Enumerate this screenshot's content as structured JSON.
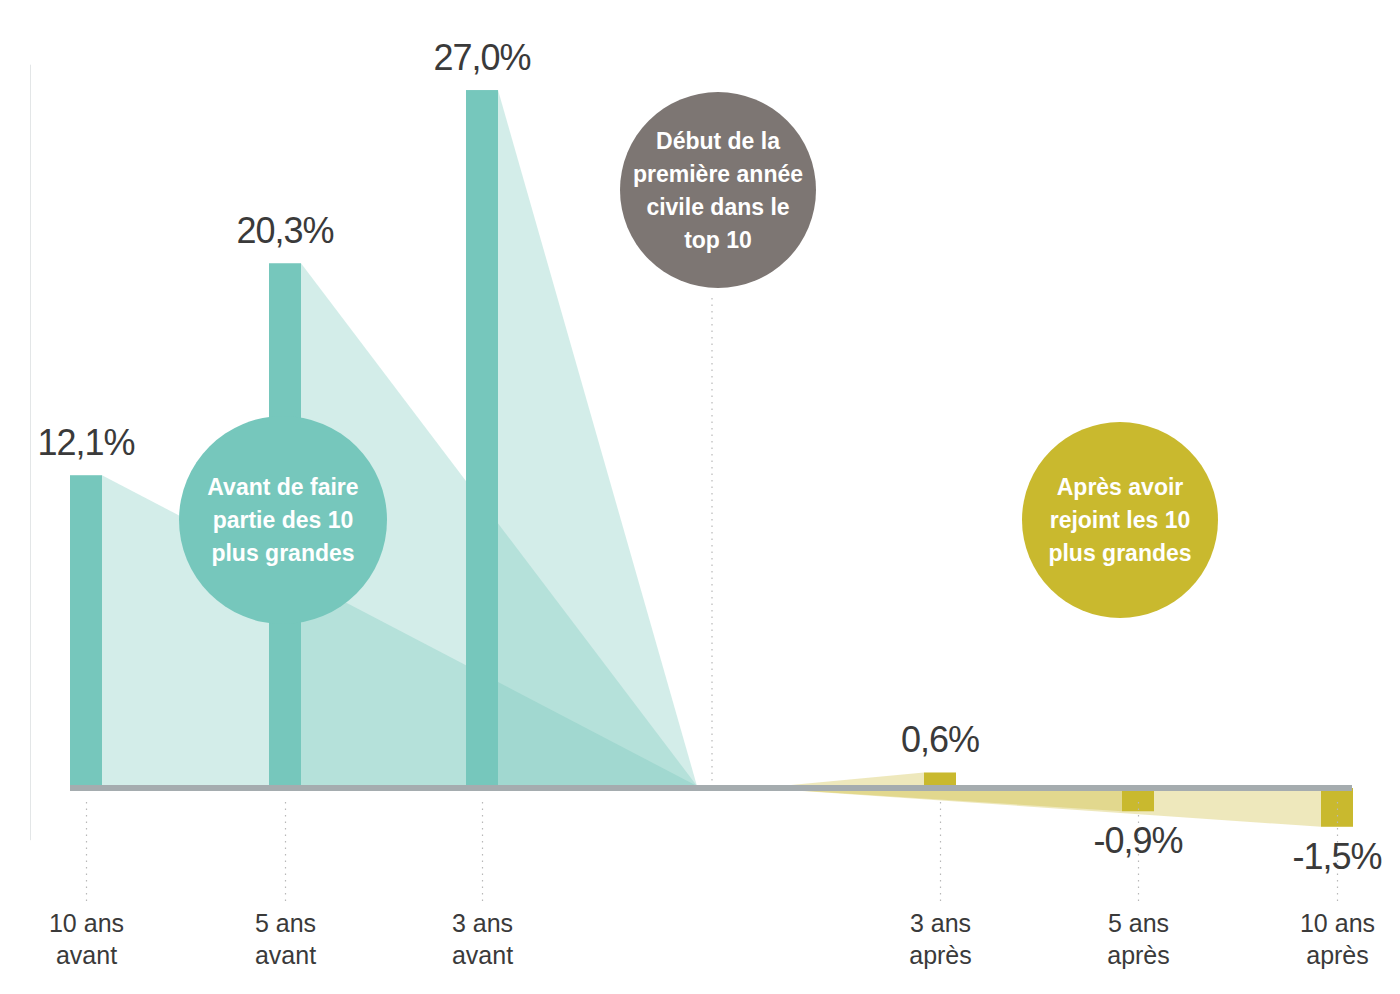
{
  "chart_data": {
    "type": "bar",
    "categories": [
      "10 ans avant",
      "5 ans avant",
      "3 ans avant",
      "3 ans après",
      "5 ans après",
      "10 ans après"
    ],
    "values": [
      12.1,
      20.3,
      27.0,
      0.6,
      -0.9,
      -1.5
    ],
    "value_labels": [
      "12,1%",
      "20,3%",
      "27,0%",
      "0,6%",
      "-0,9%",
      "-1,5%"
    ],
    "colors": [
      "#76c7bc",
      "#76c7bc",
      "#76c7bc",
      "#c9b92e",
      "#c9b92e",
      "#c9b92e"
    ],
    "ylim": [
      -2,
      28
    ],
    "yticks": [],
    "tick_labels": "x",
    "data_labels": true,
    "annotations": [
      {
        "text": [
          "Avant de faire",
          "partie des 10",
          "plus grandes"
        ]
      },
      {
        "text": [
          "Début de la",
          "première année",
          "civile dans le",
          "top 10"
        ]
      },
      {
        "text": [
          "Après avoir",
          "rejoint les 10",
          "plus grandes"
        ]
      }
    ]
  }
}
